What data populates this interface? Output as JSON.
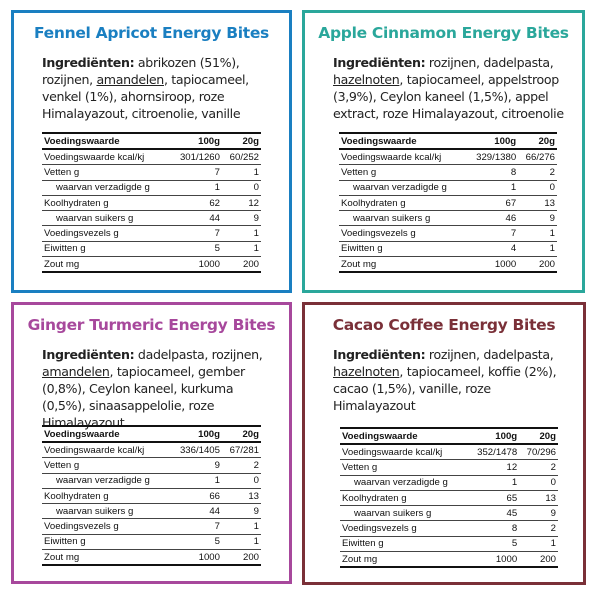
{
  "colors": {
    "fennel": "#1a7fc1",
    "apple": "#2aa79b",
    "ginger": "#a7489c",
    "cacao": "#7a3038"
  },
  "panels": [
    {
      "key": "fennel",
      "title": "Fennel Apricot Energy Bites",
      "ingredients_label": "Ingrediënten:",
      "ingredients_before": " abrikozen (51%), rozijnen, ",
      "ingredients_allergen": "amandelen",
      "ingredients_after": ", tapiocameel, venkel (1%), ahornsiroop, roze Himalayazout, citroenolie, vanille",
      "table_header": [
        "Voedingswaarde",
        "100g",
        "20g"
      ],
      "rows": [
        {
          "label": "Voedingswaarde kcal/kj",
          "v100": "301/1260",
          "v20": "60/252",
          "sub": false
        },
        {
          "label": "Vetten g",
          "v100": "7",
          "v20": "1",
          "sub": false
        },
        {
          "label": "waarvan verzadigde g",
          "v100": "1",
          "v20": "0",
          "sub": true
        },
        {
          "label": "Koolhydraten g",
          "v100": "62",
          "v20": "12",
          "sub": false
        },
        {
          "label": "waarvan suikers g",
          "v100": "44",
          "v20": "9",
          "sub": true
        },
        {
          "label": "Voedingsvezels g",
          "v100": "7",
          "v20": "1",
          "sub": false
        },
        {
          "label": "Eiwitten g",
          "v100": "5",
          "v20": "1",
          "sub": false
        },
        {
          "label": "Zout mg",
          "v100": "1000",
          "v20": "200",
          "sub": false
        }
      ]
    },
    {
      "key": "apple",
      "title": "Apple Cinnamon Energy Bites",
      "ingredients_label": "Ingrediënten:",
      "ingredients_before": " rozijnen, dadelpasta, ",
      "ingredients_allergen": "hazelnoten",
      "ingredients_after": ", tapiocameel, appelstroop (3,9%), Ceylon kaneel (1,5%), appel extract, roze Himalayazout, citroenolie",
      "table_header": [
        "Voedingswaarde",
        "100g",
        "20g"
      ],
      "rows": [
        {
          "label": "Voedingswaarde kcal/kj",
          "v100": "329/1380",
          "v20": "66/276",
          "sub": false
        },
        {
          "label": "Vetten g",
          "v100": "8",
          "v20": "2",
          "sub": false
        },
        {
          "label": "waarvan verzadigde g",
          "v100": "1",
          "v20": "0",
          "sub": true
        },
        {
          "label": "Koolhydraten g",
          "v100": "67",
          "v20": "13",
          "sub": false
        },
        {
          "label": "waarvan suikers g",
          "v100": "46",
          "v20": "9",
          "sub": true
        },
        {
          "label": "Voedingsvezels g",
          "v100": "7",
          "v20": "1",
          "sub": false
        },
        {
          "label": "Eiwitten g",
          "v100": "4",
          "v20": "1",
          "sub": false
        },
        {
          "label": "Zout mg",
          "v100": "1000",
          "v20": "200",
          "sub": false
        }
      ]
    },
    {
      "key": "ginger",
      "title": "Ginger Turmeric Energy Bites",
      "ingredients_label": "Ingrediënten:",
      "ingredients_before": " dadelpasta, rozijnen, ",
      "ingredients_allergen": "amandelen",
      "ingredients_after": ", tapiocameel, gember (0,8%), Ceylon kaneel, kurkuma (0,5%), sinaasappelolie, roze Himalayazout",
      "table_header": [
        "Voedingswaarde",
        "100g",
        "20g"
      ],
      "rows": [
        {
          "label": "Voedingswaarde kcal/kj",
          "v100": "336/1405",
          "v20": "67/281",
          "sub": false
        },
        {
          "label": "Vetten g",
          "v100": "9",
          "v20": "2",
          "sub": false
        },
        {
          "label": "waarvan verzadigde g",
          "v100": "1",
          "v20": "0",
          "sub": true
        },
        {
          "label": "Koolhydraten g",
          "v100": "66",
          "v20": "13",
          "sub": false
        },
        {
          "label": "waarvan suikers g",
          "v100": "44",
          "v20": "9",
          "sub": true
        },
        {
          "label": "Voedingsvezels g",
          "v100": "7",
          "v20": "1",
          "sub": false
        },
        {
          "label": "Eiwitten g",
          "v100": "5",
          "v20": "1",
          "sub": false
        },
        {
          "label": "Zout mg",
          "v100": "1000",
          "v20": "200",
          "sub": false
        }
      ]
    },
    {
      "key": "cacao",
      "title": "Cacao Coffee Energy Bites",
      "ingredients_label": "Ingrediënten:",
      "ingredients_before": " rozijnen, dadelpasta, ",
      "ingredients_allergen": "hazelnoten",
      "ingredients_after": ", tapiocameel, koffie (2%), cacao (1,5%), vanille, roze Himalayazout",
      "table_header": [
        "Voedingswaarde",
        "100g",
        "20g"
      ],
      "rows": [
        {
          "label": "Voedingswaarde kcal/kj",
          "v100": "352/1478",
          "v20": "70/296",
          "sub": false
        },
        {
          "label": "Vetten g",
          "v100": "12",
          "v20": "2",
          "sub": false
        },
        {
          "label": "waarvan verzadigde g",
          "v100": "1",
          "v20": "0",
          "sub": true
        },
        {
          "label": "Koolhydraten g",
          "v100": "65",
          "v20": "13",
          "sub": false
        },
        {
          "label": "waarvan suikers g",
          "v100": "45",
          "v20": "9",
          "sub": true
        },
        {
          "label": "Voedingsvezels g",
          "v100": "8",
          "v20": "2",
          "sub": false
        },
        {
          "label": "Eiwitten g",
          "v100": "5",
          "v20": "1",
          "sub": false
        },
        {
          "label": "Zout mg",
          "v100": "1000",
          "v20": "200",
          "sub": false
        }
      ]
    }
  ]
}
